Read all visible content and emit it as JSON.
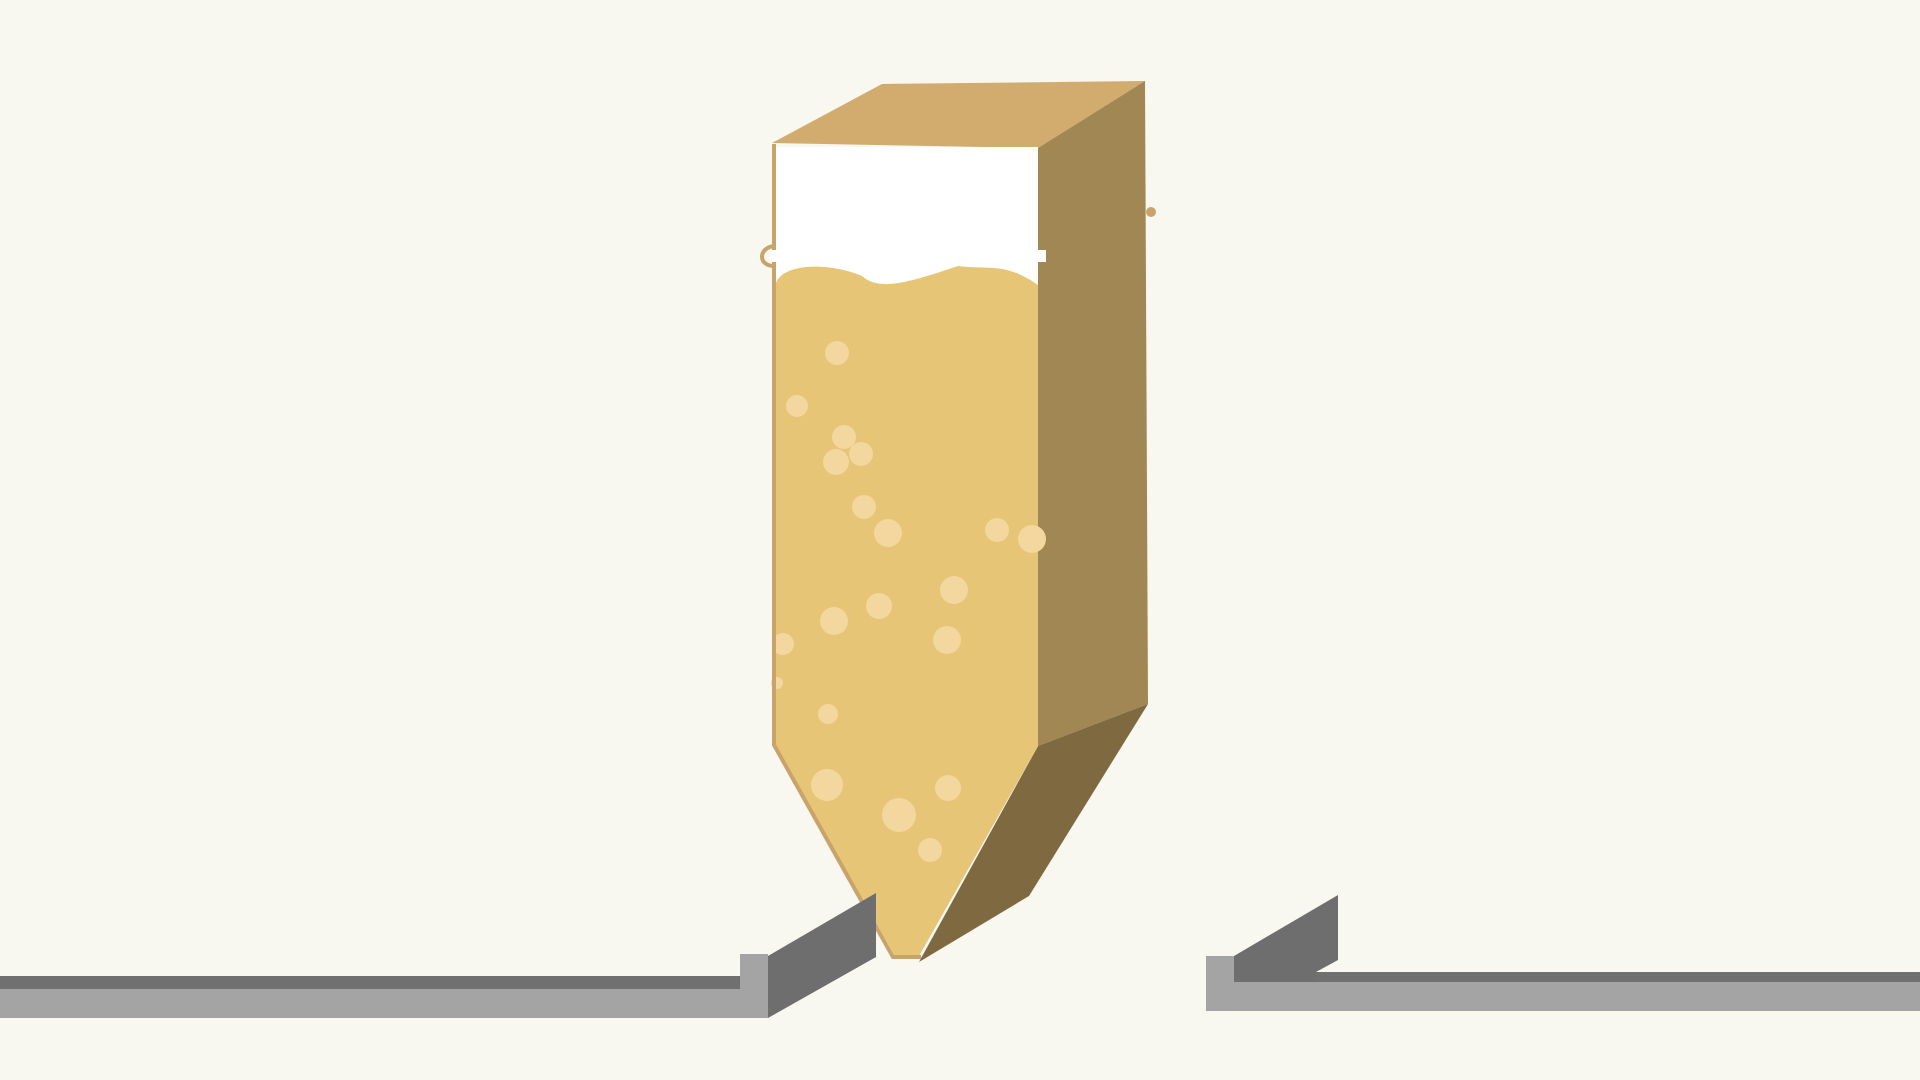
{
  "scene": {
    "background": "#f8f7f0",
    "silo": {
      "fill_level": 0.8,
      "colors": {
        "top": "#d2ab6f",
        "side": "#a18753",
        "bottom_side": "#7f6941",
        "content": "#e6c577",
        "outline": "#c9a46a",
        "bubble": "#f3d79f"
      }
    },
    "conveyor_left": {
      "colors": {
        "belt": "#a4a4a4",
        "rail": "#707070",
        "flap": "#6e6e6e"
      }
    },
    "conveyor_right": {
      "colors": {
        "belt": "#a4a4a4",
        "rail": "#707070",
        "flap": "#6e6e6e"
      }
    }
  }
}
